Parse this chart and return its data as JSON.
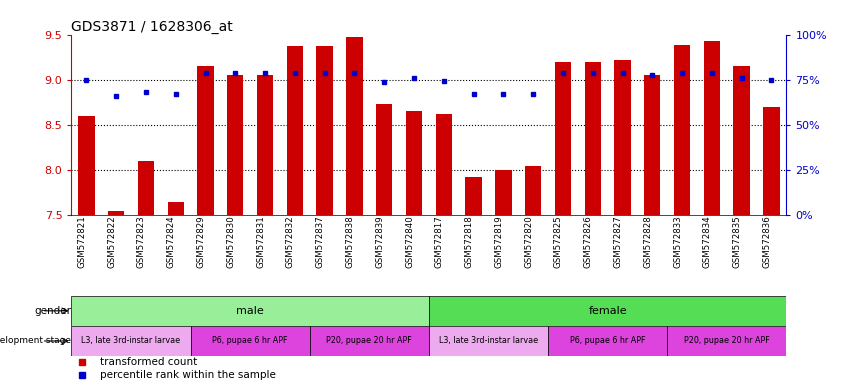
{
  "title": "GDS3871 / 1628306_at",
  "samples": [
    "GSM572821",
    "GSM572822",
    "GSM572823",
    "GSM572824",
    "GSM572829",
    "GSM572830",
    "GSM572831",
    "GSM572832",
    "GSM572837",
    "GSM572838",
    "GSM572839",
    "GSM572840",
    "GSM572817",
    "GSM572818",
    "GSM572819",
    "GSM572820",
    "GSM572825",
    "GSM572826",
    "GSM572827",
    "GSM572828",
    "GSM572833",
    "GSM572834",
    "GSM572835",
    "GSM572836"
  ],
  "bar_values": [
    8.6,
    7.55,
    8.1,
    7.65,
    9.15,
    9.05,
    9.05,
    9.37,
    9.37,
    9.47,
    8.73,
    8.65,
    8.62,
    7.93,
    8.0,
    8.05,
    9.2,
    9.2,
    9.22,
    9.05,
    9.38,
    9.43,
    9.15,
    8.7
  ],
  "blue_values": [
    9.0,
    8.82,
    8.87,
    8.84,
    9.07,
    9.08,
    9.07,
    9.08,
    9.08,
    9.07,
    8.97,
    9.02,
    8.99,
    8.84,
    8.84,
    8.84,
    9.08,
    9.08,
    9.08,
    9.05,
    9.07,
    9.08,
    9.02,
    9.0
  ],
  "ylim": [
    7.5,
    9.5
  ],
  "yticks": [
    7.5,
    8.0,
    8.5,
    9.0,
    9.5
  ],
  "right_ytick_pcts": [
    0,
    25,
    50,
    75,
    100
  ],
  "right_yticklabels": [
    "0%",
    "25%",
    "50%",
    "75%",
    "100%"
  ],
  "bar_color": "#cc0000",
  "blue_color": "#0000cc",
  "gender_row": [
    {
      "label": "male",
      "start": 0,
      "end": 12,
      "color": "#99ee99"
    },
    {
      "label": "female",
      "start": 12,
      "end": 24,
      "color": "#55dd55"
    }
  ],
  "dev_stage_row": [
    {
      "label": "L3, late 3rd-instar larvae",
      "start": 0,
      "end": 4,
      "color": "#eeaaee"
    },
    {
      "label": "P6, pupae 6 hr APF",
      "start": 4,
      "end": 8,
      "color": "#dd44dd"
    },
    {
      "label": "P20, pupae 20 hr APF",
      "start": 8,
      "end": 12,
      "color": "#dd44dd"
    },
    {
      "label": "L3, late 3rd-instar larvae",
      "start": 12,
      "end": 16,
      "color": "#eeaaee"
    },
    {
      "label": "P6, pupae 6 hr APF",
      "start": 16,
      "end": 20,
      "color": "#dd44dd"
    },
    {
      "label": "P20, pupae 20 hr APF",
      "start": 20,
      "end": 24,
      "color": "#dd44dd"
    }
  ],
  "bar_width": 0.55,
  "background_color": "#ffffff",
  "left_label_color": "#cc0000",
  "right_label_color": "#0000cc",
  "grid_yticks": [
    8.0,
    8.5,
    9.0
  ]
}
